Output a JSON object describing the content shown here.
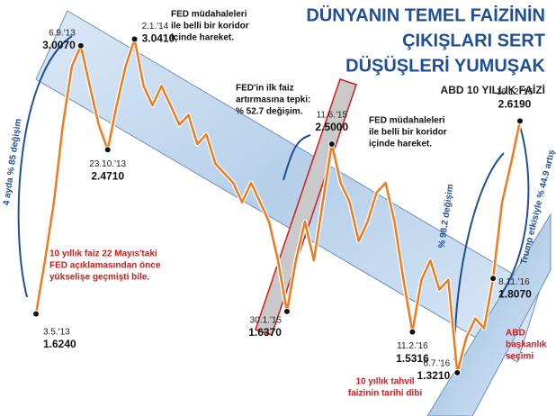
{
  "chart_data": {
    "type": "line",
    "title": [
      "DÜNYANIN TEMEL FAİZİNİN",
      "ÇIKIŞLARI SERT",
      "DÜŞÜŞLERİ YUMUŞAK"
    ],
    "subtitle": "ABD 10 YILLIK FAİZİ",
    "ylim": [
      1.2,
      3.15
    ],
    "color": "#f07a1e",
    "categories": [
      "3.5.'13",
      null,
      null,
      null,
      null,
      "6.9.'13",
      null,
      null,
      "23.10.'13",
      null,
      null,
      "2.1.'14",
      null,
      null,
      null,
      null,
      null,
      null,
      null,
      null,
      null,
      null,
      null,
      null,
      null,
      null,
      null,
      null,
      "30.1.'15",
      null,
      null,
      null,
      null,
      "11.6.'15",
      null,
      null,
      null,
      null,
      null,
      null,
      null,
      null,
      "11.2.'16",
      null,
      null,
      null,
      null,
      "6.7.'16",
      null,
      null,
      null,
      "8.11.'16",
      null,
      null,
      "16.12.'16"
    ],
    "values": [
      1.624,
      1.9,
      2.2,
      2.6,
      2.9,
      3.007,
      2.8,
      2.6,
      2.471,
      2.7,
      2.9,
      3.041,
      2.8,
      2.7,
      2.8,
      2.7,
      2.6,
      2.65,
      2.5,
      2.55,
      2.4,
      2.35,
      2.3,
      2.2,
      2.3,
      2.2,
      2.1,
      1.9,
      1.637,
      1.9,
      2.1,
      1.9,
      2.2,
      2.5,
      2.3,
      2.2,
      2.0,
      2.1,
      2.25,
      2.3,
      2.1,
      1.8,
      1.5316,
      1.8,
      1.9,
      1.75,
      1.8,
      1.321,
      1.5,
      1.6,
      1.55,
      1.807,
      2.2,
      2.4,
      2.619
    ],
    "value_labels": [
      "1.6240",
      null,
      null,
      null,
      null,
      "3.0070",
      null,
      null,
      "2.4710",
      null,
      null,
      "3.0410",
      null,
      null,
      null,
      null,
      null,
      null,
      null,
      null,
      null,
      null,
      null,
      null,
      null,
      null,
      null,
      null,
      "1.6370",
      null,
      null,
      null,
      null,
      "2.5000",
      null,
      null,
      null,
      null,
      null,
      null,
      null,
      null,
      "1.5316",
      null,
      null,
      null,
      null,
      "1.3210",
      null,
      null,
      null,
      "1.8070",
      null,
      null,
      "2.6190"
    ],
    "annotations": [
      {
        "lines": [
          "4 ayda % 85 değişim"
        ],
        "color": "#1f4e9a"
      },
      {
        "lines": [
          "FED müdahaleleri",
          "ile belli bir koridor",
          "içinde hareket."
        ],
        "color": "#111111"
      },
      {
        "lines": [
          "FED'in ilk faiz",
          "artırmasına tepki:",
          "% 52.7 değişim."
        ],
        "color": "#111111"
      },
      {
        "lines": [
          "FED müdahaleleri",
          "ile belli bir koridor",
          "içinde hareket."
        ],
        "color": "#111111"
      },
      {
        "lines": [
          "10 yıllık faiz 22 Mayıs'taki",
          "FED açıklamasından önce",
          "yükselişe geçmişti bile."
        ],
        "color": "#d7191c"
      },
      {
        "lines": [
          "10 yıllık tahvil",
          "faizinin tarihi dibi"
        ],
        "color": "#d7191c"
      },
      {
        "lines": [
          "% 98.2 değişim"
        ],
        "color": "#1f4e9a"
      },
      {
        "lines": [
          "Trump etkisiyle % 44.9 artış"
        ],
        "color": "#1f4e9a"
      },
      {
        "lines": [
          "ABD",
          "başkanlık",
          "seçimi"
        ],
        "color": "#d7191c"
      }
    ]
  }
}
